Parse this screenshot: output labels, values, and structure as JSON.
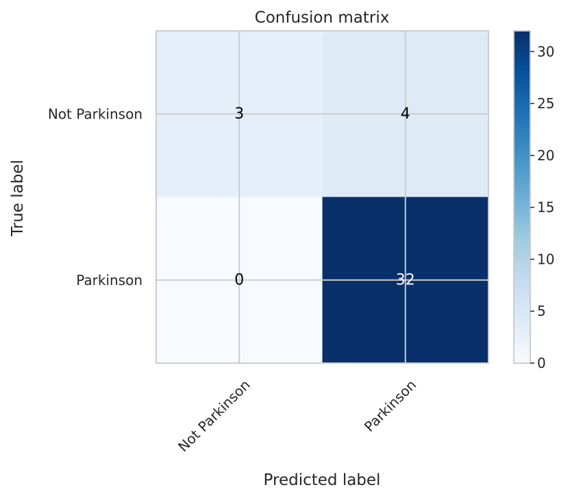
{
  "chart_data": {
    "type": "heatmap",
    "title": "Confusion matrix",
    "xlabel": "Predicted label",
    "ylabel": "True label",
    "x_categories": [
      "Not Parkinson",
      "Parkinson"
    ],
    "y_categories": [
      "Not Parkinson",
      "Parkinson"
    ],
    "values": [
      [
        3,
        4
      ],
      [
        0,
        32
      ]
    ],
    "colormap": "Blues",
    "color_range": [
      0,
      32
    ],
    "colorbar_ticks": [
      0,
      5,
      10,
      15,
      20,
      25,
      30
    ],
    "grid": true,
    "colors": {
      "low": "#f7fbff",
      "high": "#08306b",
      "text_dark": "#000000",
      "text_light": "#ffffff",
      "grid": "#cccccc"
    }
  }
}
